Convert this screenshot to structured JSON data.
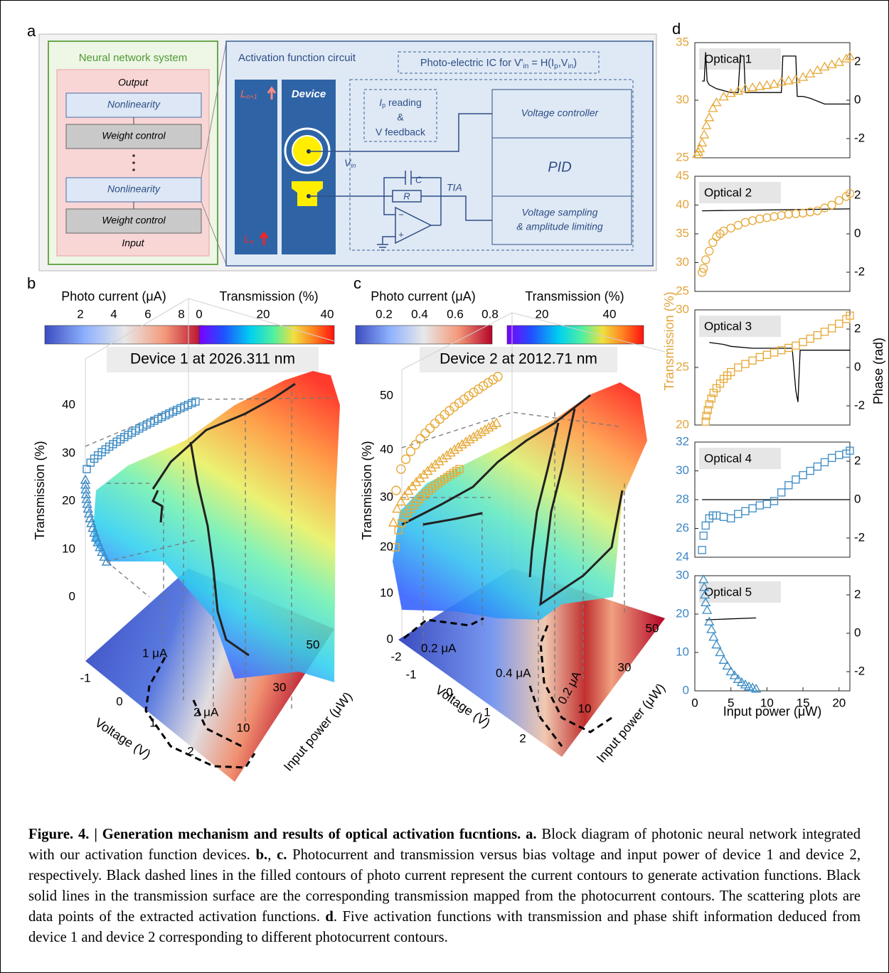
{
  "panel_labels": {
    "a": "a",
    "b": "b",
    "c": "c",
    "d": "d"
  },
  "diagram": {
    "system": {
      "title": "Neural network system",
      "output": "Output",
      "nonlinearity_1": "Nonlinearity",
      "weight_1": "Weight control",
      "nonlinearity_2": "Nonlinearity",
      "weight_2": "Weight control",
      "input": "Input"
    },
    "circuit": {
      "title": "Activation function circuit",
      "ic_label": [
        "Photo-electric IC for V'",
        "in",
        " = H(I",
        "p",
        ",V",
        "in",
        ")"
      ],
      "layer_next": [
        "L",
        "n+1"
      ],
      "layer_prev": [
        "L",
        "n"
      ],
      "device": "Device",
      "reading": [
        "I",
        "p",
        " reading"
      ],
      "and": "&",
      "feedback": "V feedback",
      "vin": [
        "V",
        "in"
      ],
      "cap": "C",
      "res": "R",
      "tia": "TIA",
      "minus": "−",
      "plus": "+",
      "voltage_controller": "Voltage controller",
      "pid": "PID",
      "sampling": [
        "Voltage sampling",
        "& amplitude limiting"
      ]
    }
  },
  "panel_b": {
    "photo_label": "Photo current (μA)",
    "photo_ticks": [
      2,
      4,
      6,
      8
    ],
    "trans_label": "Transmission (%)",
    "trans_ticks": [
      0,
      20,
      40
    ],
    "title": "Device 1 at 2026.311 nm",
    "zlabel": "Transmission (%)",
    "zticks": [
      0,
      10,
      20,
      30,
      40
    ],
    "xlabel": "Voltage (V)",
    "xticks": [
      -1,
      0,
      1,
      2
    ],
    "ylabel": "Input power (μW)",
    "yticks": [
      10,
      30,
      50
    ],
    "contours": [
      "1 μA",
      "2 μA"
    ]
  },
  "panel_c": {
    "photo_label": "Photo current (μA)",
    "photo_ticks": [
      0.2,
      0.4,
      0.6,
      0.8
    ],
    "trans_label": "Transmission (%)",
    "trans_ticks": [
      20,
      40
    ],
    "title": "Device 2 at 2012.71 nm",
    "zlabel": "Transmission (%)",
    "zticks": [
      0,
      10,
      20,
      30,
      40,
      50
    ],
    "xlabel": "Voltage (V)",
    "xticks": [
      -2,
      -1,
      0,
      1,
      2
    ],
    "ylabel": "Input power (μW)",
    "yticks": [
      10,
      30,
      50
    ],
    "contours": [
      "0.2 μA",
      "0.4 μA",
      "0.2 μA"
    ]
  },
  "panel_d": {
    "ylabel": "Transmission (%)",
    "y2label": "Phase (rad)",
    "xlabel": "Input power (μW)",
    "ylabel_color": "#e3a43c"
  },
  "chart_data": [
    {
      "type": "scatter",
      "title": "Optical 1",
      "xlim": [
        0,
        21.5
      ],
      "ylim": [
        25,
        35
      ],
      "yticks": [
        25,
        30,
        35
      ],
      "y2lim": [
        -3,
        3
      ],
      "y2ticks": [
        -2,
        0,
        2
      ],
      "ycolor": "#e3a43c",
      "transmission": {
        "marker": "triangle",
        "color": "#e6a836",
        "x": [
          0.3,
          0.5,
          0.7,
          1,
          1.3,
          1.6,
          2,
          2.5,
          3,
          4,
          5,
          6,
          7,
          8,
          9,
          10,
          11,
          12,
          13,
          14,
          15,
          16,
          17,
          18,
          19,
          20,
          21,
          21.5
        ],
        "values": [
          25.3,
          25.5,
          25.8,
          26.3,
          27,
          27.8,
          28.5,
          29.3,
          29.8,
          30.3,
          30.6,
          30.8,
          31,
          31.1,
          31.2,
          31.3,
          31.4,
          31.6,
          31.7,
          31.8,
          32,
          32.3,
          32.6,
          32.9,
          33.1,
          33.3,
          33.6,
          33.8
        ]
      },
      "phase": {
        "axis": "y2",
        "color": "#000000",
        "x": [
          1,
          1.3,
          1.5,
          1.7,
          2,
          3,
          4,
          5,
          6,
          6.3,
          6.5,
          6.8,
          7,
          8,
          9,
          10,
          11,
          12,
          12.2,
          14,
          14.2,
          15,
          16,
          18,
          20,
          21.5
        ],
        "values": [
          1,
          1,
          2.5,
          1,
          0.8,
          0.6,
          0.5,
          0.4,
          0.4,
          2.3,
          2.3,
          2.3,
          0.4,
          0.4,
          0.4,
          0.4,
          0.4,
          0.4,
          2.3,
          2.3,
          0.2,
          0.2,
          0.1,
          -0.2,
          -0.2,
          -0.2
        ]
      }
    },
    {
      "type": "scatter",
      "title": "Optical 2",
      "xlim": [
        0,
        21.5
      ],
      "ylim": [
        25,
        45
      ],
      "yticks": [
        25,
        30,
        35,
        40,
        45
      ],
      "y2lim": [
        -3,
        3
      ],
      "y2ticks": [
        -2,
        0,
        2
      ],
      "ycolor": "#e3a43c",
      "transmission": {
        "marker": "circle",
        "color": "#e6a836",
        "x": [
          1,
          1.2,
          1.5,
          2,
          2.5,
          3,
          3.5,
          4,
          5,
          6,
          7,
          8,
          9,
          10,
          11,
          12,
          13,
          14,
          15,
          16,
          17,
          18,
          19,
          20,
          21,
          21.5
        ],
        "values": [
          28.3,
          29,
          30.5,
          32,
          33.5,
          34.5,
          35,
          35.5,
          36,
          36.5,
          37,
          37.3,
          37.6,
          37.8,
          38,
          38.2,
          38.4,
          38.5,
          38.6,
          38.8,
          39,
          39.5,
          40,
          40.8,
          41.5,
          42
        ]
      },
      "phase": {
        "axis": "y2",
        "color": "#000000",
        "x": [
          1,
          21.5
        ],
        "values": [
          1.2,
          1.3
        ]
      }
    },
    {
      "type": "scatter",
      "title": "Optical 3",
      "xlim": [
        0,
        21.5
      ],
      "ylim": [
        20,
        30
      ],
      "yticks": [
        20,
        25,
        30
      ],
      "y2lim": [
        -3,
        3
      ],
      "y2ticks": [
        -2,
        0,
        2
      ],
      "ycolor": "#e3a43c",
      "transmission": {
        "marker": "square",
        "color": "#e6a836",
        "x": [
          1.5,
          1.6,
          1.8,
          2,
          2.3,
          2.6,
          3,
          3.5,
          4,
          4.5,
          5,
          6,
          7,
          8,
          9,
          10,
          11,
          12,
          13,
          14,
          15,
          16,
          17,
          18,
          19,
          20,
          21,
          21.5
        ],
        "values": [
          20.3,
          20.8,
          21.3,
          21.8,
          22.3,
          22.8,
          23.2,
          23.6,
          24,
          24.3,
          24.6,
          25,
          25.3,
          25.6,
          25.9,
          26.1,
          26.3,
          26.5,
          26.7,
          26.9,
          27.2,
          27.5,
          27.8,
          28.1,
          28.4,
          28.8,
          29.2,
          29.5
        ]
      },
      "phase": {
        "axis": "y2",
        "color": "#000000",
        "x": [
          2,
          4,
          5,
          8,
          10,
          12,
          13.5,
          14,
          14.3,
          14.6,
          15,
          16,
          18,
          20,
          21.5
        ],
        "values": [
          1.3,
          1.2,
          1.1,
          1,
          1,
          1,
          1,
          -1.2,
          -1.8,
          0.9,
          0.9,
          0.9,
          0.9,
          0.9,
          0.9
        ]
      }
    },
    {
      "type": "scatter",
      "title": "Optical 4",
      "xlim": [
        0,
        21.5
      ],
      "ylim": [
        24,
        32
      ],
      "yticks": [
        24,
        26,
        28,
        30,
        32
      ],
      "y2lim": [
        -3,
        3
      ],
      "y2ticks": [
        -2,
        0,
        2
      ],
      "ycolor": "#3d86c6",
      "transmission": {
        "marker": "square",
        "color": "#3a8ac4",
        "x": [
          1,
          1.2,
          1.5,
          2,
          2.5,
          3,
          4,
          5,
          6,
          7,
          8,
          9,
          10,
          11,
          12,
          13,
          14,
          15,
          16,
          17,
          18,
          19,
          20,
          21,
          21.5
        ],
        "values": [
          24.5,
          25.5,
          26.2,
          26.7,
          26.9,
          26.9,
          26.8,
          26.7,
          27,
          27.2,
          27.4,
          27.6,
          27.7,
          27.9,
          28.5,
          29,
          29.4,
          29.7,
          30,
          30.3,
          30.6,
          30.9,
          31.1,
          31.2,
          31.4
        ]
      },
      "phase": {
        "axis": "y2",
        "color": "#000000",
        "x": [
          1,
          21.5
        ],
        "values": [
          0,
          0
        ]
      }
    },
    {
      "type": "scatter",
      "title": "Optical 5",
      "xlim": [
        0,
        21.5
      ],
      "ylim": [
        0,
        30
      ],
      "yticks": [
        0,
        10,
        20,
        30
      ],
      "y2lim": [
        -3,
        3
      ],
      "y2ticks": [
        -2,
        0,
        2
      ],
      "ycolor": "#3d86c6",
      "xticks": [
        0,
        5,
        10,
        15,
        20
      ],
      "transmission": {
        "marker": "triangle",
        "color": "#3a8ac4",
        "x": [
          1.2,
          1.3,
          1.4,
          1.5,
          1.7,
          2,
          2.3,
          2.6,
          3,
          3.5,
          4,
          4.5,
          5,
          5.5,
          6,
          6.5,
          7,
          7.5,
          8,
          8.5
        ],
        "values": [
          29,
          27,
          25,
          23,
          21,
          18,
          16,
          14,
          12,
          10,
          8,
          6.5,
          5,
          4,
          3,
          2.2,
          1.6,
          1.1,
          0.8,
          0.5
        ]
      },
      "phase": {
        "axis": "y2",
        "color": "#000000",
        "x": [
          1.5,
          8.5
        ],
        "values": [
          0.7,
          0.8
        ]
      }
    }
  ],
  "caption": [
    "Figure. 4. | Generation mechanism and results of optical activation fucntions. a.",
    " Block diagram of photonic neural network integrated with our activation function devices. ",
    "b.",
    ", ",
    "c.",
    " Photocurrent and transmission versus bias voltage and input power of device 1 and device 2, respectively. Black dashed lines in the filled contours of photo current represent the current contours to generate activation functions. Black solid lines in the transmission surface are the corresponding transmission mapped from the photocurrent contours. The scattering plots are data points of the extracted activation functions. ",
    "d",
    ". Five activation functions with transmission and phase shift information deduced from device 1 and device 2 corresponding to different photocurrent contours."
  ]
}
